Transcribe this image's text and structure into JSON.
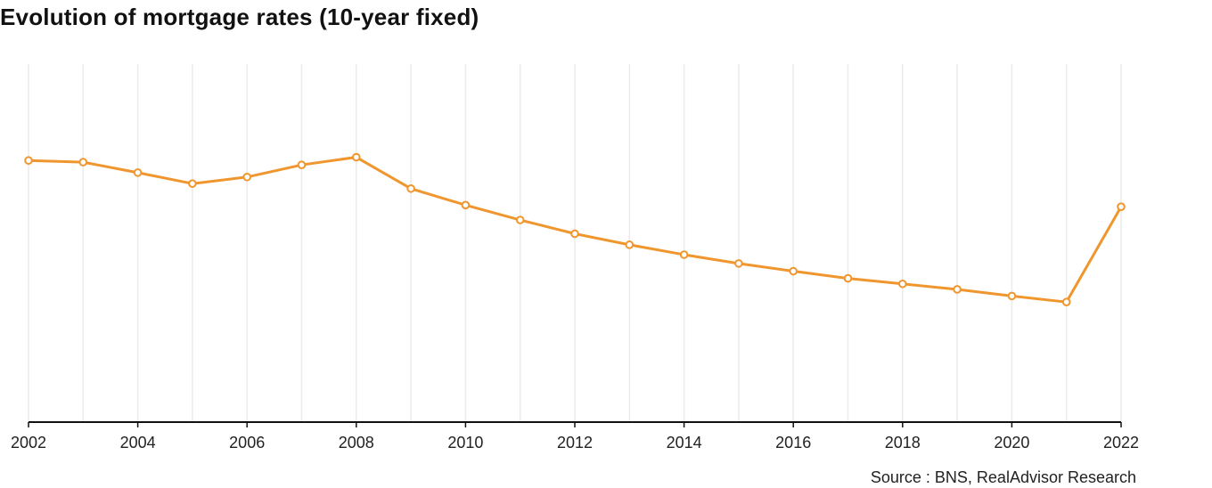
{
  "chart_data": {
    "type": "line",
    "title": "Evolution of mortgage rates (10-year fixed)",
    "xlabel": "",
    "ylabel": "",
    "x": [
      2002,
      2003,
      2004,
      2005,
      2006,
      2007,
      2008,
      2009,
      2010,
      2011,
      2012,
      2013,
      2014,
      2015,
      2016,
      2017,
      2018,
      2019,
      2020,
      2021,
      2022
    ],
    "series": [
      {
        "values": [
          4.75,
          4.72,
          4.53,
          4.33,
          4.45,
          4.67,
          4.81,
          4.24,
          3.94,
          3.67,
          3.42,
          3.22,
          3.04,
          2.88,
          2.74,
          2.61,
          2.51,
          2.41,
          2.29,
          2.18,
          3.91
        ]
      }
    ],
    "xticks": [
      "2002",
      "2004",
      "2006",
      "2008",
      "2010",
      "2012",
      "2014",
      "2016",
      "2018",
      "2020",
      "2022"
    ],
    "xlim": [
      2002,
      2022
    ],
    "ylim": [
      0,
      6.5
    ],
    "y_axis_labels_shown": false,
    "grid": "vertical",
    "legend": "none",
    "source": "Source : BNS, RealAdvisor Research",
    "colors": {
      "line": "#f0962e",
      "marker_fill": "#ffffff",
      "grid": "#ececec",
      "axis": "#111111",
      "text": "#222222"
    }
  }
}
